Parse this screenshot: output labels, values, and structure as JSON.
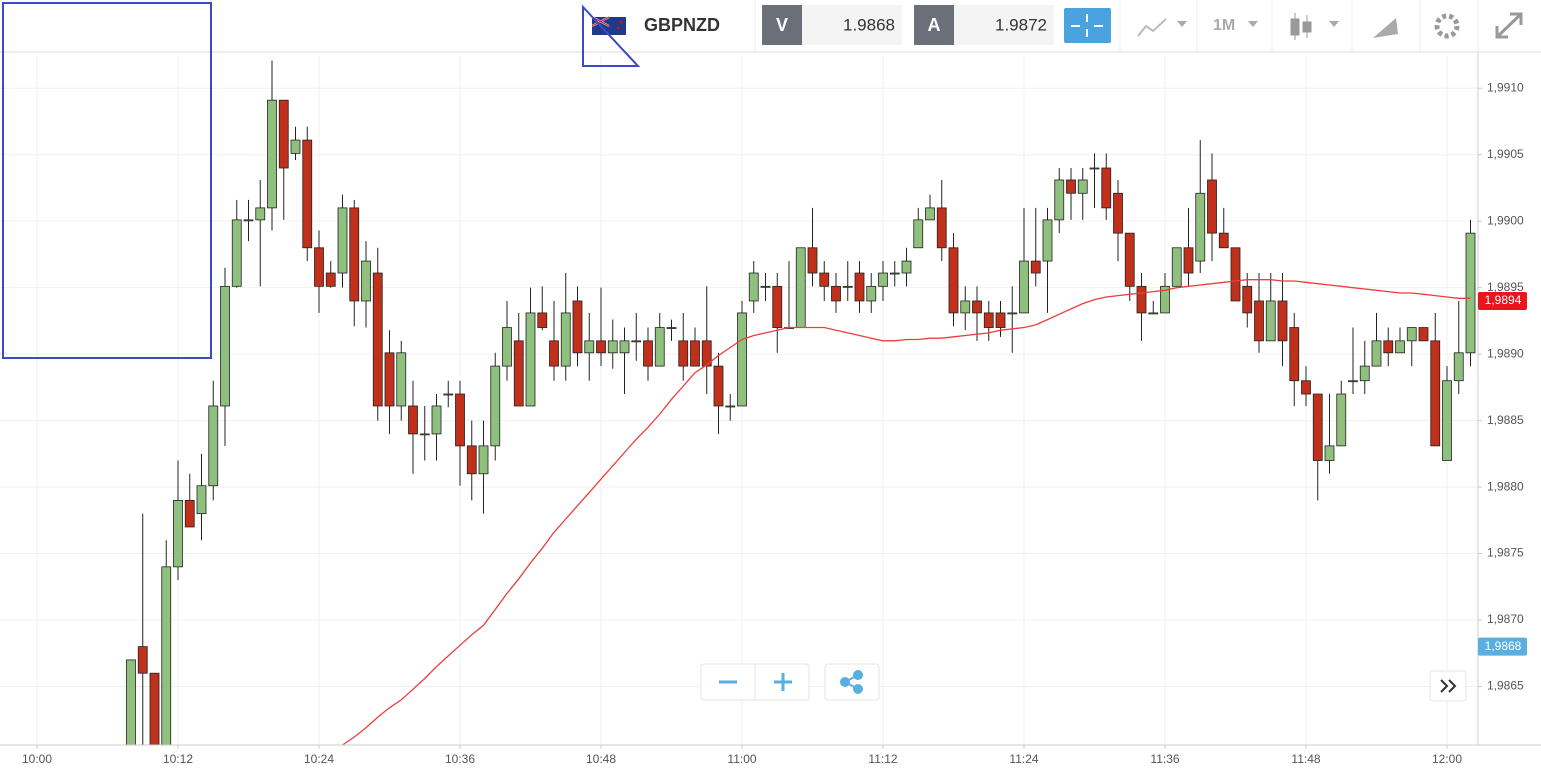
{
  "header": {
    "symbol": "GBPNZD",
    "bid_tag": "V",
    "bid": "1.9868",
    "ask_tag": "A",
    "ask": "1.9872",
    "timeframe": "1M"
  },
  "chart_data": {
    "type": "candlestick",
    "up_color": "#8fc07e",
    "down_color": "#c0301a",
    "ma_color": "#f03c3c",
    "ylim": [
      1.98606,
      1.99125
    ],
    "yticks": [
      {
        "value": 1.9865,
        "label": "1,9865"
      },
      {
        "value": 1.987,
        "label": "1,9870"
      },
      {
        "value": 1.9875,
        "label": "1,9875"
      },
      {
        "value": 1.988,
        "label": "1,9880"
      },
      {
        "value": 1.9885,
        "label": "1,9885"
      },
      {
        "value": 1.989,
        "label": "1,9890"
      },
      {
        "value": 1.9895,
        "label": "1,9895"
      },
      {
        "value": 1.99,
        "label": "1,9900"
      },
      {
        "value": 1.9905,
        "label": "1,9905"
      },
      {
        "value": 1.991,
        "label": "1,9910"
      }
    ],
    "xticks": [
      "10:00",
      "10:12",
      "10:24",
      "10:36",
      "10:48",
      "11:00",
      "11:12",
      "11:24",
      "11:36",
      "11:48",
      "12:00"
    ],
    "grid": true,
    "open": [
      null,
      null,
      null,
      null,
      null,
      null,
      null,
      null,
      1.986,
      1.9868,
      1.9866,
      1.986,
      1.9874,
      1.9879,
      1.9878,
      1.98801,
      1.98861,
      1.98951,
      1.99001,
      1.99001,
      1.9901,
      1.99091,
      1.99051,
      1.99061,
      1.9898,
      1.98961,
      1.98961,
      1.9901,
      1.9894,
      1.98961,
      1.98901,
      1.98861,
      1.98861,
      1.9884,
      1.9884,
      1.9887,
      1.9887,
      1.98831,
      1.9881,
      1.98831,
      1.98891,
      1.9891,
      1.98861,
      1.98931,
      1.9891,
      1.98891,
      1.9894,
      1.98901,
      1.9891,
      1.98901,
      1.98901,
      1.9891,
      1.9891,
      1.98891,
      1.9892,
      1.9891,
      1.9891,
      1.9891,
      1.98891,
      1.98861,
      1.98861,
      1.9894,
      1.98951,
      1.98951,
      1.9892,
      1.9892,
      1.9898,
      1.98961,
      1.98951,
      1.98951,
      1.98961,
      1.9894,
      1.98951,
      1.98961,
      1.98961,
      1.9898,
      1.99001,
      1.9901,
      1.9898,
      1.98931,
      1.9894,
      1.98931,
      1.98931,
      1.98931,
      1.98931,
      1.9897,
      1.9897,
      1.99001,
      1.99031,
      1.99021,
      1.9904,
      1.9904,
      1.99021,
      1.98991,
      1.98951,
      1.98931,
      1.98931,
      1.98951,
      1.9898,
      1.9897,
      1.99031,
      1.98991,
      1.9898,
      1.98951,
      1.9894,
      1.9891,
      1.9894,
      1.9892,
      1.9888,
      1.9887,
      1.9882,
      1.98831,
      1.9888,
      1.9888,
      1.98891,
      1.9891,
      1.98901,
      1.9891,
      1.9892,
      1.9891,
      1.9882,
      1.9888,
      1.98901
    ],
    "high": [
      null,
      null,
      null,
      null,
      null,
      null,
      null,
      null,
      1.9867,
      1.9878,
      1.9866,
      1.9876,
      1.9882,
      1.9881,
      1.98825,
      1.9888,
      1.98965,
      1.99016,
      1.99016,
      1.99031,
      1.99121,
      1.99091,
      1.99071,
      1.99071,
      1.98993,
      1.9897,
      1.9902,
      1.99016,
      1.98985,
      1.9898,
      1.98918,
      1.9891,
      1.9888,
      1.98861,
      1.9887,
      1.9888,
      1.9888,
      1.9885,
      1.9885,
      1.98901,
      1.9894,
      1.98931,
      1.9895,
      1.98951,
      1.9894,
      1.98961,
      1.98951,
      1.98931,
      1.9895,
      1.98926,
      1.9892,
      1.98931,
      1.9892,
      1.98931,
      1.98926,
      1.98931,
      1.9892,
      1.98951,
      1.98901,
      1.9887,
      1.9894,
      1.9897,
      1.98961,
      1.98961,
      1.9897,
      1.9898,
      1.9901,
      1.9897,
      1.98961,
      1.9897,
      1.9897,
      1.98961,
      1.9897,
      1.9897,
      1.9898,
      1.9901,
      1.9902,
      1.99031,
      1.98991,
      1.98951,
      1.98951,
      1.9894,
      1.9894,
      1.98951,
      1.9901,
      1.9901,
      1.9901,
      1.9904,
      1.9904,
      1.9904,
      1.99051,
      1.99051,
      1.99031,
      1.98991,
      1.98961,
      1.9894,
      1.98961,
      1.9898,
      1.9901,
      1.99061,
      1.99051,
      1.9901,
      1.9898,
      1.98961,
      1.98961,
      1.98961,
      1.98961,
      1.98931,
      1.98891,
      1.9887,
      1.9887,
      1.9888,
      1.9892,
      1.9891,
      1.98931,
      1.9892,
      1.9892,
      1.9892,
      1.9892,
      1.98931,
      1.98891,
      1.9894,
      1.99001
    ],
    "low": [
      null,
      null,
      null,
      null,
      null,
      null,
      null,
      null,
      1.986,
      1.986,
      1.986,
      1.986,
      1.9873,
      1.9877,
      1.9876,
      1.9879,
      1.98831,
      1.9895,
      1.98985,
      1.98951,
      1.98993,
      1.99001,
      1.99046,
      1.9897,
      1.98931,
      1.9895,
      1.9895,
      1.98921,
      1.9892,
      1.9885,
      1.9884,
      1.9885,
      1.9881,
      1.9882,
      1.9882,
      1.9886,
      1.98801,
      1.9879,
      1.9878,
      1.9882,
      1.9888,
      1.98861,
      1.98861,
      1.98918,
      1.9888,
      1.9888,
      1.98891,
      1.9888,
      1.98891,
      1.98889,
      1.9887,
      1.98895,
      1.9888,
      1.98891,
      1.9891,
      1.9888,
      1.98891,
      1.9887,
      1.9884,
      1.9885,
      1.98861,
      1.98931,
      1.9894,
      1.98901,
      1.9892,
      1.9892,
      1.98951,
      1.9894,
      1.98931,
      1.9894,
      1.98931,
      1.98931,
      1.9894,
      1.98951,
      1.98951,
      1.9898,
      1.99001,
      1.9897,
      1.98921,
      1.98918,
      1.9891,
      1.9891,
      1.98913,
      1.98901,
      1.98931,
      1.98951,
      1.98931,
      1.98991,
      1.99001,
      1.99001,
      1.9901,
      1.99001,
      1.9897,
      1.9894,
      1.9891,
      1.98931,
      1.98931,
      1.98951,
      1.98951,
      1.98961,
      1.9897,
      1.9898,
      1.9894,
      1.9892,
      1.98901,
      1.9891,
      1.98891,
      1.98861,
      1.98861,
      1.9879,
      1.9881,
      1.98831,
      1.9887,
      1.9887,
      1.98891,
      1.98891,
      1.98901,
      1.98891,
      1.9891,
      1.98831,
      1.9882,
      1.9887,
      1.98891
    ],
    "close": [
      null,
      null,
      null,
      null,
      null,
      null,
      null,
      null,
      1.9867,
      1.9866,
      1.986,
      1.9874,
      1.9879,
      1.9877,
      1.98801,
      1.98861,
      1.98951,
      1.99001,
      1.99001,
      1.9901,
      1.99091,
      1.9904,
      1.99061,
      1.9898,
      1.98951,
      1.98951,
      1.9901,
      1.9894,
      1.9897,
      1.98861,
      1.98861,
      1.98901,
      1.9884,
      1.9884,
      1.98861,
      1.9887,
      1.98831,
      1.9881,
      1.98831,
      1.98891,
      1.9892,
      1.98861,
      1.98931,
      1.9892,
      1.98891,
      1.98931,
      1.98901,
      1.9891,
      1.98901,
      1.9891,
      1.9891,
      1.9891,
      1.98891,
      1.9892,
      1.9892,
      1.98891,
      1.98891,
      1.98891,
      1.98861,
      1.98861,
      1.98931,
      1.98961,
      1.98951,
      1.9892,
      1.9892,
      1.9898,
      1.98961,
      1.98951,
      1.9894,
      1.98951,
      1.9894,
      1.98951,
      1.98961,
      1.98961,
      1.9897,
      1.99001,
      1.9901,
      1.9898,
      1.98931,
      1.9894,
      1.98931,
      1.9892,
      1.9892,
      1.98931,
      1.9897,
      1.98961,
      1.99001,
      1.99031,
      1.99021,
      1.99031,
      1.9904,
      1.9901,
      1.98991,
      1.98951,
      1.98931,
      1.98931,
      1.98951,
      1.9898,
      1.98961,
      1.99021,
      1.98991,
      1.9898,
      1.9894,
      1.98931,
      1.9891,
      1.9894,
      1.9891,
      1.9888,
      1.9887,
      1.9882,
      1.98831,
      1.9887,
      1.9888,
      1.98891,
      1.9891,
      1.98901,
      1.9891,
      1.9892,
      1.9891,
      1.98831,
      1.9888,
      1.98901,
      1.98991
    ],
    "ma": [
      null,
      null,
      null,
      null,
      null,
      null,
      null,
      null,
      null,
      null,
      null,
      null,
      null,
      null,
      null,
      null,
      null,
      null,
      null,
      null,
      null,
      null,
      null,
      null,
      null,
      null,
      1.98606,
      1.98612,
      1.98619,
      1.98627,
      1.98634,
      1.9864,
      1.98648,
      1.98656,
      1.98665,
      1.98673,
      1.98681,
      1.98689,
      1.98696,
      1.98708,
      1.9872,
      1.98731,
      1.98743,
      1.98754,
      1.98766,
      1.98776,
      1.98786,
      1.98796,
      1.98806,
      1.98816,
      1.98826,
      1.98836,
      1.98845,
      1.98855,
      1.98866,
      1.98876,
      1.98886,
      1.98892,
      1.98899,
      1.98905,
      1.98911,
      1.98914,
      1.98916,
      1.98918,
      1.9892,
      1.9892,
      1.9892,
      1.9892,
      1.98918,
      1.98916,
      1.98914,
      1.98912,
      1.9891,
      1.9891,
      1.98911,
      1.98911,
      1.98912,
      1.98912,
      1.98913,
      1.98914,
      1.98915,
      1.98916,
      1.98918,
      1.98919,
      1.9892,
      1.98922,
      1.98926,
      1.9893,
      1.98934,
      1.98938,
      1.98941,
      1.98943,
      1.98944,
      1.98945,
      1.98946,
      1.98947,
      1.98948,
      1.9895,
      1.98951,
      1.98952,
      1.98953,
      1.98954,
      1.98955,
      1.98956,
      1.98956,
      1.98956,
      1.98955,
      1.98955,
      1.98954,
      1.98953,
      1.98952,
      1.98951,
      1.9895,
      1.98949,
      1.98948,
      1.98947,
      1.98946,
      1.98946,
      1.98945,
      1.98944,
      1.98943,
      1.98942,
      1.98942
    ],
    "price_labels": [
      {
        "value": 1.9894,
        "label": "1,9894",
        "color": "#e8141e"
      },
      {
        "value": 1.9868,
        "label": "1,9868",
        "color": "#5aaee0"
      }
    ]
  }
}
